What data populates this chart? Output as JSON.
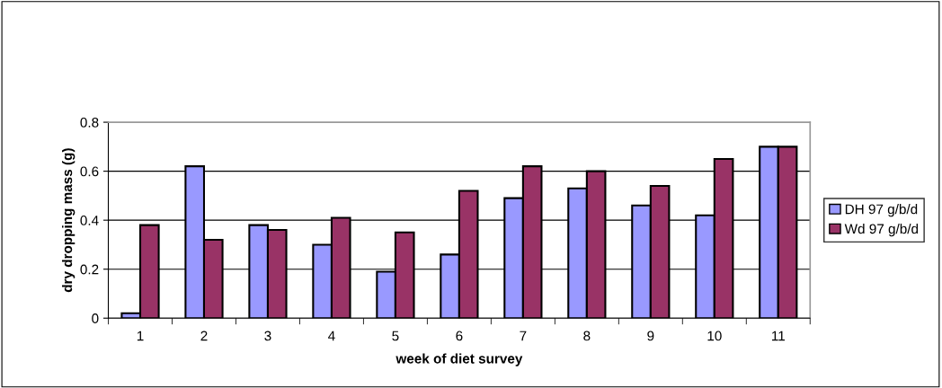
{
  "chart_data": {
    "type": "bar",
    "xlabel": "week of diet survey",
    "ylabel": "dry dropping mass (g)",
    "categories": [
      "1",
      "2",
      "3",
      "4",
      "5",
      "6",
      "7",
      "8",
      "9",
      "10",
      "11"
    ],
    "series": [
      {
        "name": "DH 97 g/b/d",
        "color": "#9999ff",
        "values": [
          0.02,
          0.62,
          0.38,
          0.3,
          0.19,
          0.26,
          0.49,
          0.53,
          0.46,
          0.42,
          0.7
        ]
      },
      {
        "name": "Wd 97 g/b/d",
        "color": "#993366",
        "values": [
          0.38,
          0.32,
          0.36,
          0.41,
          0.35,
          0.52,
          0.62,
          0.6,
          0.54,
          0.65,
          0.7
        ]
      }
    ],
    "ylim": [
      0,
      0.8
    ],
    "yticks": [
      {
        "value": 0,
        "label": "0"
      },
      0.2,
      0.4,
      0.6,
      0.8
    ],
    "grid": "y",
    "legend": "right"
  }
}
